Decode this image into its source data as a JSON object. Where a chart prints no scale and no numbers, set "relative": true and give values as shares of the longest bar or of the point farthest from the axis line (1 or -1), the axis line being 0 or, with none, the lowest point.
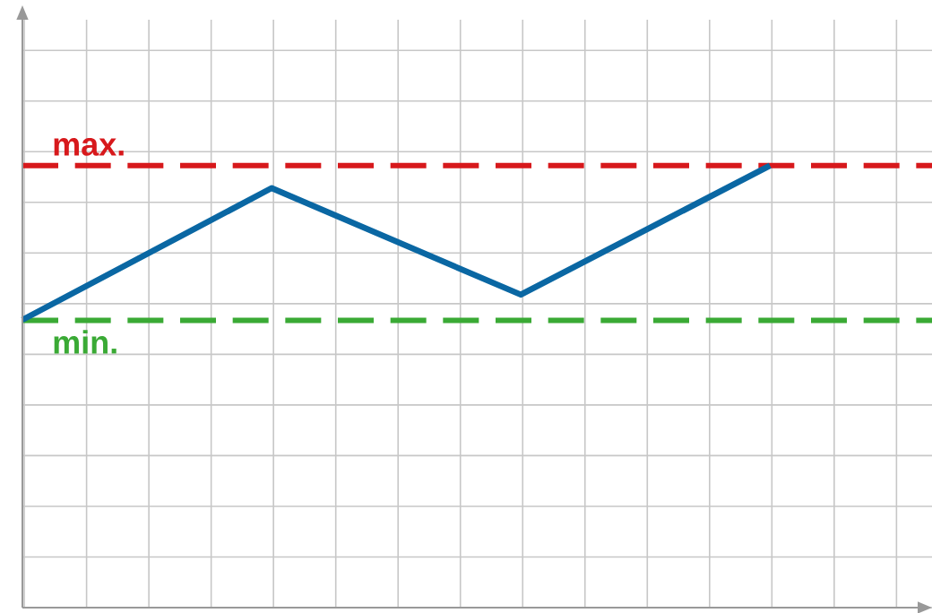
{
  "chart_data": {
    "type": "line",
    "relative": true,
    "categories": [
      null,
      null,
      null,
      null
    ],
    "grid": true,
    "tick_labels": false,
    "series": [
      {
        "color": "#0a67a3",
        "values": [
          0.651,
          0.949,
          0.708,
          1
        ]
      }
    ],
    "ref_lines": [
      {
        "axis": "y",
        "value": 1.0,
        "label": "max.",
        "color": "#d7191c",
        "line_style": "dashed"
      },
      {
        "axis": "y",
        "value": 0.65,
        "label": "min.",
        "color": "#3aaa35",
        "line_style": "dashed"
      }
    ]
  }
}
